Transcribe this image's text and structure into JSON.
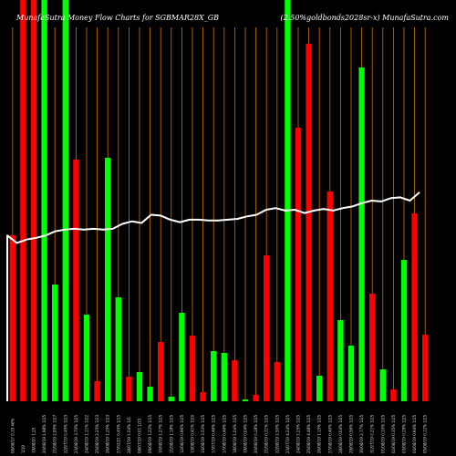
{
  "chart_data": {
    "type": "bar",
    "title_left": "MunafaSutra  Money Flow  Charts for SGBMAR28X_GB",
    "title_right": "(2.50%goldbonds2028sr-x) MunafaSutra.com",
    "colors": {
      "up": "#00ff00",
      "down": "#ff0000",
      "line": "#ffffff",
      "grid": "#d07000",
      "background": "#000000"
    },
    "ylim": [
      0,
      440
    ],
    "bars": [
      {
        "value": 182,
        "color": "down",
        "label": "06/08/17 0.19 46%"
      },
      {
        "value": 440,
        "color": "down",
        "label": "1/19"
      },
      {
        "value": 440,
        "color": "down",
        "label": "19/08/20 1.25"
      },
      {
        "value": 440,
        "color": "up",
        "label": "20/08/19 1.98% 1/25"
      },
      {
        "value": 128,
        "color": "up",
        "label": "21/08/19 2.95% 1/27"
      },
      {
        "value": 440,
        "color": "up",
        "label": "22/07/19 0.45% 1/23"
      },
      {
        "value": 265,
        "color": "down",
        "label": "23/08/19 3.70% 1/25"
      },
      {
        "value": 95,
        "color": "up",
        "label": "24/08/19 1.11% 1/22"
      },
      {
        "value": 22,
        "color": "down",
        "label": "25/08/19 2.25% 1/23"
      },
      {
        "value": 267,
        "color": "up",
        "label": "26/08/19 1.25% 1/23"
      },
      {
        "value": 114,
        "color": "up",
        "label": "27/02/21 0.45% 1/15"
      },
      {
        "value": 27,
        "color": "down",
        "label": "28/07/19 1.04% 1/5"
      },
      {
        "value": 32,
        "color": "up",
        "label": "08/07/19 0.01 1/15"
      },
      {
        "value": 16,
        "color": "up",
        "label": "09/08/19 1.22% 1/15"
      },
      {
        "value": 65,
        "color": "down",
        "label": "10/08/19 1.27% 1/25"
      },
      {
        "value": 5,
        "color": "up",
        "label": "11/08/19 1.18% 1/25"
      },
      {
        "value": 97,
        "color": "up",
        "label": "12/08/19 0.96% 1/25"
      },
      {
        "value": 72,
        "color": "down",
        "label": "13/08/19 0.41% 1/20"
      },
      {
        "value": 10,
        "color": "down",
        "label": "14/08/19 3.53% 1/25"
      },
      {
        "value": 55,
        "color": "up",
        "label": "17/07/19 0.46% 1/25"
      },
      {
        "value": 53,
        "color": "up",
        "label": "17/08/19 0.46% 1/25"
      },
      {
        "value": 45,
        "color": "down",
        "label": "18/08/19 1.04% 1/25"
      },
      {
        "value": 2,
        "color": "up",
        "label": "19/08/19 0.04% 1/25"
      },
      {
        "value": 7,
        "color": "down",
        "label": "20/08/19 0.18% 1/25"
      },
      {
        "value": 160,
        "color": "down",
        "label": "21/08/19 0.31% 1/25"
      },
      {
        "value": 43,
        "color": "down",
        "label": "22/08/19 2.50% 1/25"
      },
      {
        "value": 440,
        "color": "up",
        "label": "23/07/19 4.24% 1/25"
      },
      {
        "value": 300,
        "color": "down",
        "label": "24/08/19 1.25% 1/25"
      },
      {
        "value": 392,
        "color": "down",
        "label": "25/08/19 4.48% 1/25"
      },
      {
        "value": 28,
        "color": "up",
        "label": "26/08/19 1.15% 1/25"
      },
      {
        "value": 230,
        "color": "down",
        "label": "27/08/19 0.40% 1/25"
      },
      {
        "value": 89,
        "color": "up",
        "label": "28/08/19 0.04% 1/25"
      },
      {
        "value": 61,
        "color": "up",
        "label": "29/08/19 0.56% 1/25"
      },
      {
        "value": 366,
        "color": "up",
        "label": "30/08/19 2.77% 1/25"
      },
      {
        "value": 118,
        "color": "down",
        "label": "31/07/19 0.21% 1/25"
      },
      {
        "value": 35,
        "color": "up",
        "label": "01/08/19 0.10% 1/25"
      },
      {
        "value": 13,
        "color": "down",
        "label": "02/08/19 0.35% 1/25"
      },
      {
        "value": 155,
        "color": "up",
        "label": "03/08/19 0.29% 1/25"
      },
      {
        "value": 206,
        "color": "down",
        "label": "04/08/19 0.94% 1/25"
      },
      {
        "value": 73,
        "color": "down",
        "label": "05/08/19 0.12% 1/25"
      }
    ],
    "line_values": [
      200,
      191,
      195,
      197,
      200,
      205,
      207,
      208,
      207,
      208,
      207,
      208,
      214,
      217,
      215,
      225,
      224,
      219,
      216,
      219,
      219,
      218,
      218,
      219,
      220,
      223,
      225,
      231,
      233,
      230,
      231,
      227,
      230,
      232,
      230,
      233,
      235,
      239,
      242,
      241,
      245,
      246,
      242,
      252
    ]
  }
}
